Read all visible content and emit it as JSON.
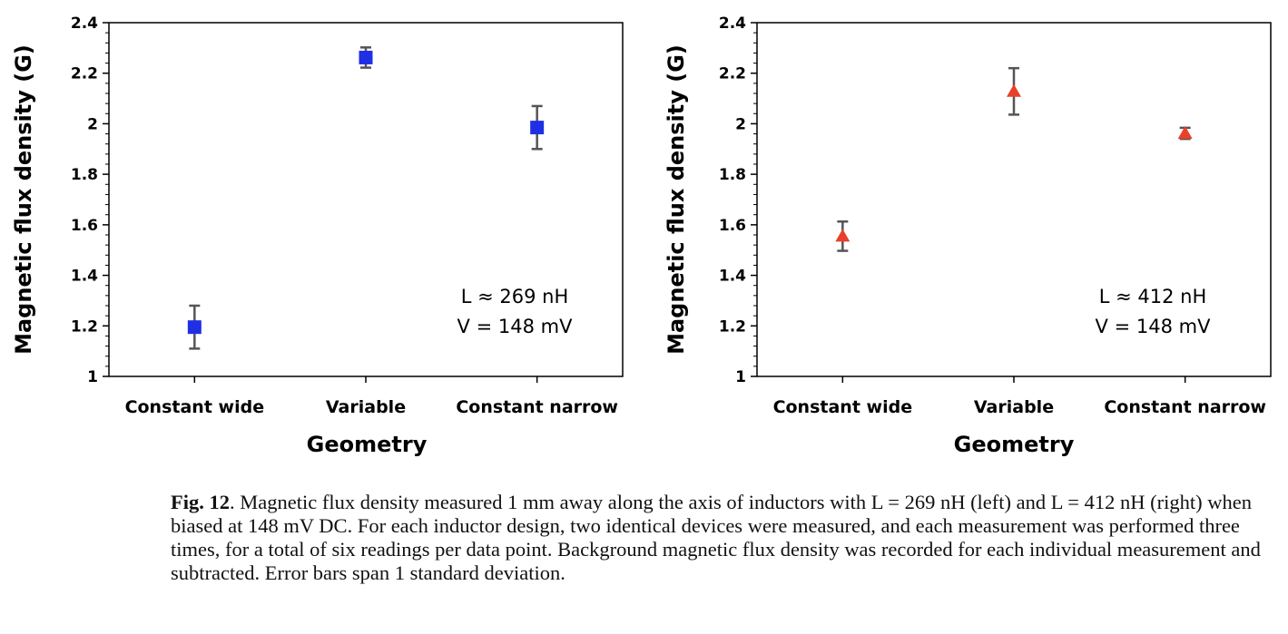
{
  "chart_data": [
    {
      "type": "scatter",
      "marker": "square",
      "color": "#1f2fe6",
      "categories": [
        "Constant wide",
        "Variable",
        "Constant narrow"
      ],
      "values": [
        1.195,
        2.262,
        1.985
      ],
      "errors": [
        0.085,
        0.04,
        0.085
      ],
      "xlabel": "Geometry",
      "ylabel": "Magnetic flux density (G)",
      "ylim": [
        1,
        2.4
      ],
      "yticks": [
        "1",
        "1.2",
        "1.4",
        "1.6",
        "1.8",
        "2",
        "2.2",
        "2.4"
      ],
      "annotations": [
        "L ≈ 269 nH",
        "V = 148 mV"
      ]
    },
    {
      "type": "scatter",
      "marker": "triangle",
      "color": "#e8402a",
      "categories": [
        "Constant wide",
        "Variable",
        "Constant narrow"
      ],
      "values": [
        1.555,
        2.128,
        1.962
      ],
      "errors": [
        0.058,
        0.092,
        0.022
      ],
      "xlabel": "Geometry",
      "ylabel": "Magnetic flux density (G)",
      "ylim": [
        1,
        2.4
      ],
      "yticks": [
        "1",
        "1.2",
        "1.4",
        "1.6",
        "1.8",
        "2",
        "2.2",
        "2.4"
      ],
      "annotations": [
        "L ≈ 412 nH",
        "V = 148 mV"
      ]
    }
  ],
  "caption": {
    "label": "Fig. 12",
    "text": ".  Magnetic flux density measured 1 mm away along the axis of inductors with L = 269 nH (left) and L = 412 nH (right) when biased at 148 mV DC. For each inductor design, two identical devices were measured, and each measurement was performed three times, for a total of six readings per data point. Background magnetic flux density was recorded for each individual measurement and subtracted. Error bars span 1 standard deviation."
  }
}
